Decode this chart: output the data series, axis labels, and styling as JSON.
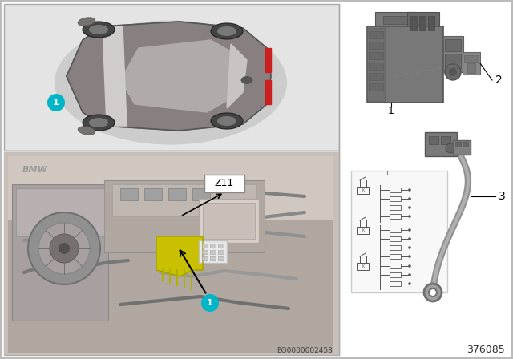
{
  "bg_color": "#ffffff",
  "cyan_color": "#00b5c8",
  "part_number_text": "376085",
  "eo_number_text": "EO0000002453",
  "z11_label": "Z11",
  "label1": "1",
  "label2": "2",
  "label3": "3",
  "top_panel_bg": "#e2e2e2",
  "bot_panel_bg": "#c0b8b0",
  "right_bg": "#ffffff",
  "schematic_bg": "#f8f8f8"
}
